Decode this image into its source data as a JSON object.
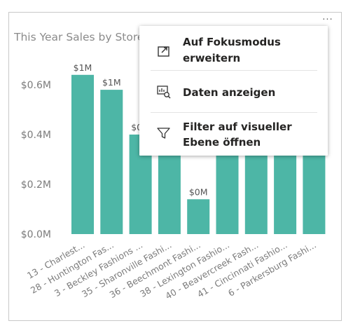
{
  "visual": {
    "more_options": "...",
    "title": "This Year Sales by Store"
  },
  "context_menu": {
    "items": [
      {
        "line1": "Auf Fokusmodus",
        "line2": "erweitern",
        "icon": "focus-mode-icon"
      },
      {
        "line1": "Daten anzeigen",
        "line2": "",
        "icon": "show-data-icon"
      },
      {
        "line1": "Filter auf visueller",
        "line2": "Ebene öffnen",
        "icon": "filter-icon"
      }
    ]
  },
  "chart_data": {
    "type": "bar",
    "title": "This Year Sales by Store",
    "categories": [
      "13 - Charlest...",
      "28 - Huntington Fas...",
      "3 - Beckley Fashions ...",
      "35 - Sharonville Fashi...",
      "36 - Beechmont Fashi...",
      "38 - Lexington Fashio...",
      "40 - Beavercreek Fash...",
      "41 - Cincinnati Fashio...",
      "6 - Parkersburg Fashi..."
    ],
    "values": [
      0.64,
      0.58,
      0.4,
      0.55,
      0.14,
      0.55,
      0.55,
      0.55,
      0.55
    ],
    "data_labels": [
      "$1M",
      "$1M",
      "$0M",
      "",
      "$0M",
      "",
      "",
      "",
      ""
    ],
    "yticks": [
      "$0.0M",
      "$0.2M",
      "$0.4M",
      "$0.6M"
    ],
    "ytick_values": [
      0,
      0.2,
      0.4,
      0.6
    ],
    "ylim": [
      0,
      0.6
    ],
    "bar_color": "#4db6a6",
    "grid": false
  }
}
